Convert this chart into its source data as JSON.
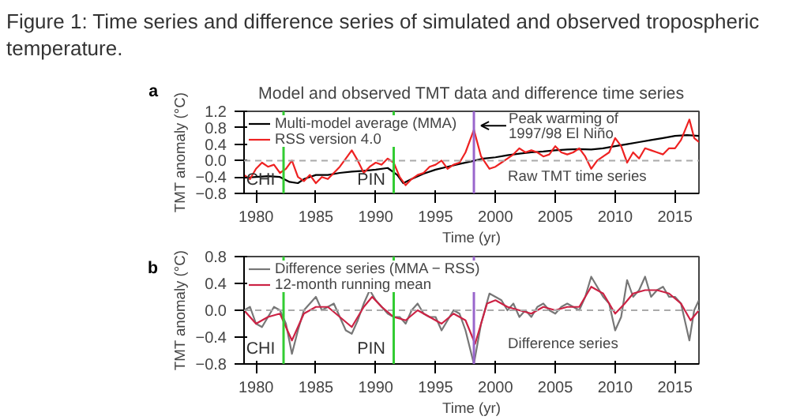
{
  "chart_data": [
    {
      "type": "line",
      "title": "Figure 1: Time series and difference series of simulated and observed tropospheric temperature.",
      "subtitle": "Model and observed TMT data and difference time series",
      "xlabel": "Time (yr)",
      "ylabel": "TMT anomaly (°C)",
      "xlim": [
        1979,
        2017
      ],
      "xticks": [
        1980,
        1985,
        1990,
        1995,
        2000,
        2005,
        2010,
        2015
      ],
      "ylim": [
        -0.8,
        1.2
      ],
      "yticks": [
        -0.8,
        -0.4,
        {
          "value": 0,
          "label": "0.0"
        },
        0.4,
        0.8,
        1.2
      ],
      "grid": false,
      "legend": "top left",
      "marker": "none",
      "line_style": "solid",
      "series": [
        {
          "name": "Multi-model average (MMA)",
          "color": "#000000",
          "x": [
            1979,
            1980,
            1981,
            1982,
            1982.8,
            1983.5,
            1984,
            1985,
            1986,
            1987,
            1988,
            1989,
            1990,
            1991,
            1991.8,
            1992.3,
            1993,
            1994,
            1995,
            1996,
            1997,
            1998,
            1999,
            2000,
            2001,
            2002,
            2003,
            2004,
            2005,
            2006,
            2007,
            2008,
            2009,
            2010,
            2011,
            2012,
            2013,
            2014,
            2015,
            2016,
            2017
          ],
          "values": [
            -0.42,
            -0.4,
            -0.38,
            -0.4,
            -0.52,
            -0.55,
            -0.45,
            -0.35,
            -0.35,
            -0.3,
            -0.27,
            -0.25,
            -0.22,
            -0.18,
            -0.35,
            -0.55,
            -0.45,
            -0.32,
            -0.22,
            -0.15,
            -0.08,
            -0.02,
            0.05,
            0.08,
            0.13,
            0.17,
            0.2,
            0.22,
            0.25,
            0.27,
            0.28,
            0.27,
            0.3,
            0.35,
            0.4,
            0.45,
            0.5,
            0.55,
            0.6,
            0.62,
            0.6
          ]
        },
        {
          "name": "RSS version 4.0",
          "color": "#ee2222",
          "x": [
            1979,
            1979.5,
            1980,
            1980.5,
            1981,
            1981.5,
            1982,
            1982.5,
            1983,
            1983.5,
            1984,
            1984.5,
            1985,
            1985.5,
            1986,
            1986.5,
            1987,
            1987.5,
            1988,
            1988.5,
            1989,
            1989.5,
            1990,
            1990.5,
            1991,
            1991.5,
            1992,
            1992.5,
            1993,
            1993.5,
            1994,
            1994.5,
            1995,
            1995.5,
            1996,
            1996.5,
            1997,
            1997.5,
            1998.2,
            1998.8,
            1999.5,
            2000,
            2000.5,
            2001,
            2001.5,
            2002,
            2002.5,
            2003,
            2003.5,
            2004,
            2004.5,
            2005,
            2005.5,
            2006,
            2006.5,
            2007,
            2007.5,
            2008,
            2008.5,
            2009,
            2009.5,
            2010,
            2010.5,
            2011,
            2011.5,
            2012,
            2012.5,
            2013,
            2013.5,
            2014,
            2014.5,
            2015,
            2015.5,
            2016.2,
            2016.6,
            2017
          ],
          "values": [
            -0.35,
            -0.45,
            -0.2,
            -0.05,
            -0.15,
            -0.1,
            -0.3,
            -0.2,
            0.0,
            -0.4,
            -0.5,
            -0.35,
            -0.55,
            -0.4,
            -0.45,
            -0.3,
            -0.15,
            0.05,
            0.25,
            0.0,
            -0.3,
            -0.15,
            -0.05,
            -0.1,
            0.05,
            -0.05,
            -0.4,
            -0.6,
            -0.45,
            -0.35,
            -0.3,
            -0.15,
            -0.1,
            0.0,
            -0.2,
            -0.1,
            -0.05,
            0.2,
            0.75,
            0.1,
            -0.2,
            -0.15,
            -0.05,
            0.05,
            0.15,
            0.3,
            0.2,
            0.25,
            0.2,
            0.1,
            0.15,
            0.35,
            0.2,
            0.15,
            0.2,
            0.3,
            0.1,
            -0.2,
            0.0,
            0.1,
            0.2,
            0.55,
            0.35,
            -0.05,
            0.2,
            0.05,
            0.3,
            0.25,
            0.2,
            0.15,
            0.3,
            0.3,
            0.5,
            1.0,
            0.55,
            0.45
          ]
        }
      ],
      "ref_lines": [
        {
          "axis": "y",
          "value": 0,
          "color": "#aaaaaa",
          "line_style": "dashed"
        },
        {
          "axis": "x",
          "value": 1982.3,
          "label": "CHI",
          "color": "#33cc33"
        },
        {
          "axis": "x",
          "value": 1991.5,
          "label": "PIN",
          "color": "#33cc33"
        },
        {
          "axis": "x",
          "value": 1998.2,
          "color": "#9966cc"
        }
      ],
      "annotations": [
        "a",
        {
          "text": "Peak warming of\n1997/98 El Niño",
          "x": 1998.5,
          "y": 0.85
        },
        "Raw TMT time series"
      ]
    },
    {
      "type": "line",
      "xlabel": "Time (yr)",
      "ylabel": "TMT anomaly (°C)",
      "xlim": [
        1979,
        2017
      ],
      "xticks": [
        1980,
        1985,
        1990,
        1995,
        2000,
        2005,
        2010,
        2015
      ],
      "ylim": [
        -0.8,
        0.8
      ],
      "yticks": [
        -0.8,
        -0.4,
        {
          "value": 0,
          "label": "0.0"
        },
        0.4,
        0.8
      ],
      "grid": false,
      "legend": "top left",
      "marker": "none",
      "line_style": "solid",
      "series": [
        {
          "name": "Difference series (MMA − RSS)",
          "color": "#777777",
          "x": [
            1979,
            1979.5,
            1980,
            1980.5,
            1981,
            1981.5,
            1982,
            1982.5,
            1983,
            1983.5,
            1984,
            1984.5,
            1985,
            1985.5,
            1986,
            1986.5,
            1987,
            1987.5,
            1988,
            1988.5,
            1989,
            1989.5,
            1990,
            1990.5,
            1991,
            1991.5,
            1992,
            1992.5,
            1993,
            1993.5,
            1994,
            1994.5,
            1995,
            1995.5,
            1996,
            1996.5,
            1997,
            1997.5,
            1998.2,
            1998.8,
            1999.5,
            2000,
            2000.5,
            2001,
            2001.5,
            2002,
            2002.5,
            2003,
            2003.5,
            2004,
            2004.5,
            2005,
            2005.5,
            2006,
            2006.5,
            2007,
            2007.5,
            2008,
            2008.5,
            2009,
            2009.5,
            2010,
            2010.5,
            2011,
            2011.5,
            2012,
            2012.5,
            2013,
            2013.5,
            2014,
            2014.5,
            2015,
            2015.5,
            2016.2,
            2016.6,
            2017
          ],
          "values": [
            0.0,
            0.05,
            -0.2,
            -0.25,
            -0.1,
            0.05,
            0.0,
            -0.2,
            -0.65,
            -0.3,
            0.0,
            0.1,
            0.2,
            0.0,
            0.05,
            0.1,
            -0.1,
            -0.3,
            -0.35,
            -0.15,
            0.1,
            0.3,
            0.15,
            0.05,
            -0.05,
            -0.1,
            -0.1,
            -0.2,
            0.0,
            0.1,
            -0.05,
            -0.1,
            -0.1,
            -0.3,
            -0.15,
            0.0,
            -0.05,
            -0.3,
            -0.8,
            -0.2,
            0.25,
            0.2,
            0.15,
            0.0,
            0.1,
            -0.1,
            0.0,
            -0.1,
            0.05,
            0.1,
            0.0,
            -0.05,
            0.05,
            0.1,
            0.05,
            0.0,
            0.2,
            0.5,
            0.35,
            0.2,
            0.1,
            -0.3,
            -0.1,
            0.45,
            0.2,
            0.3,
            0.5,
            0.2,
            0.3,
            0.35,
            0.2,
            0.2,
            0.1,
            -0.45,
            0.0,
            0.15
          ]
        },
        {
          "name": "12-month running mean",
          "color": "#cc2244",
          "x": [
            1979,
            1980,
            1981,
            1982,
            1983,
            1984,
            1985,
            1986,
            1987,
            1988,
            1989,
            1989.7,
            1990.5,
            1991.5,
            1992.5,
            1993.5,
            1994.5,
            1995.5,
            1996.5,
            1997.5,
            1998.3,
            1999.3,
            2000,
            2001,
            2002,
            2003,
            2004,
            2005,
            2006,
            2007,
            2008,
            2009,
            2010,
            2010.8,
            2011.5,
            2012.5,
            2013.5,
            2014.5,
            2015.5,
            2016.3,
            2017
          ],
          "values": [
            0.0,
            -0.2,
            -0.1,
            -0.05,
            -0.45,
            -0.05,
            0.05,
            0.05,
            -0.1,
            -0.25,
            0.05,
            0.2,
            0.05,
            -0.1,
            -0.15,
            0.0,
            -0.1,
            -0.2,
            -0.05,
            -0.15,
            -0.5,
            0.1,
            0.15,
            0.05,
            0.0,
            -0.05,
            0.05,
            0.0,
            0.05,
            0.05,
            0.35,
            0.25,
            -0.05,
            0.1,
            0.25,
            0.3,
            0.3,
            0.25,
            0.1,
            -0.15,
            0.0
          ]
        }
      ],
      "ref_lines": [
        {
          "axis": "y",
          "value": 0,
          "color": "#aaaaaa",
          "line_style": "dashed"
        },
        {
          "axis": "x",
          "value": 1982.3,
          "label": "CHI",
          "color": "#33cc33"
        },
        {
          "axis": "x",
          "value": 1991.5,
          "label": "PIN",
          "color": "#33cc33"
        },
        {
          "axis": "x",
          "value": 1998.2,
          "color": "#9966cc"
        }
      ],
      "annotations": [
        "b",
        "Difference series"
      ]
    }
  ]
}
